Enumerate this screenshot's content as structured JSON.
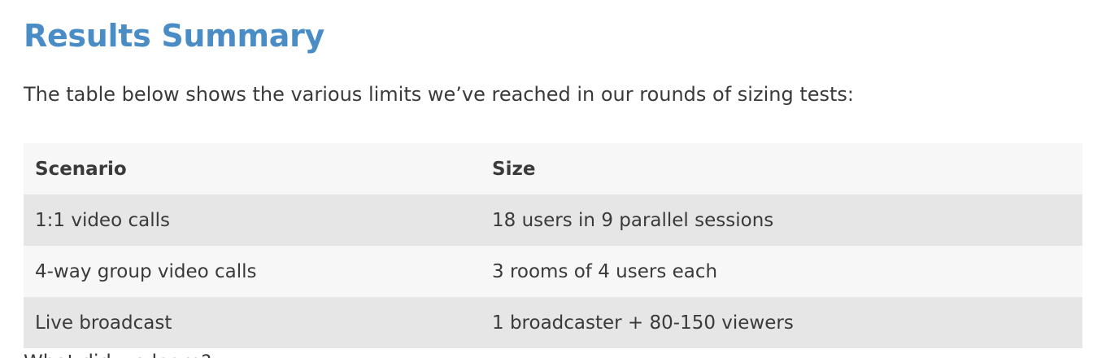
{
  "heading": "Results Summary",
  "intro": "The table below shows the various limits we’ve reached in our rounds of sizing tests:",
  "table": {
    "headers": {
      "scenario": "Scenario",
      "size": "Size"
    },
    "rows": [
      {
        "scenario": "1:1 video calls",
        "size": "18 users in 9 parallel sessions"
      },
      {
        "scenario": "4-way group video calls",
        "size": "3 rooms of 4 users each"
      },
      {
        "scenario": "Live broadcast",
        "size": "1 broadcaster + 80-150 viewers"
      }
    ]
  },
  "next_text": "What did we learn?",
  "colors": {
    "heading": "#4a8dc6",
    "text": "#3a3a3a",
    "row_light": "#f7f7f7",
    "row_dark": "#e6e6e6"
  }
}
